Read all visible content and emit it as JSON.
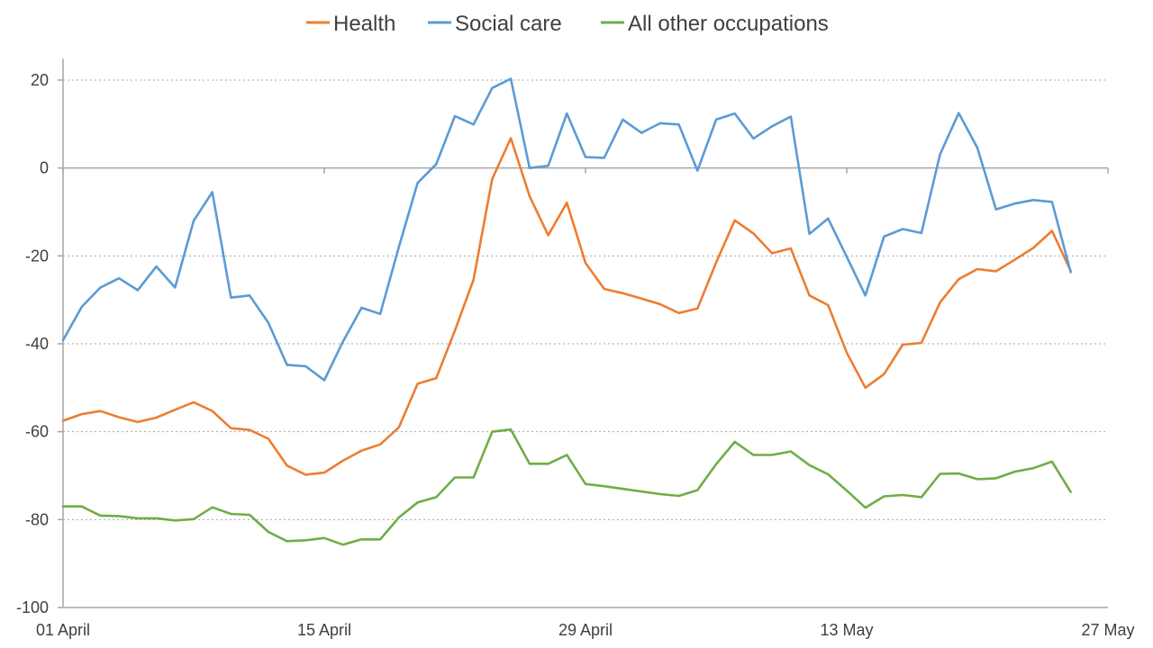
{
  "chart_data": {
    "type": "line",
    "title": "",
    "xlabel": "",
    "ylabel": "",
    "ylim": [
      -100,
      20
    ],
    "yticks": [
      20,
      0,
      -20,
      -40,
      -60,
      -80,
      -100
    ],
    "x_tick_labels": [
      {
        "index": 0,
        "label": "01 April"
      },
      {
        "index": 14,
        "label": "15 April"
      },
      {
        "index": 28,
        "label": "29 April"
      },
      {
        "index": 42,
        "label": "13 May"
      },
      {
        "index": 56,
        "label": "27 May"
      }
    ],
    "x_count": 57,
    "grid": true,
    "legend": "top-center",
    "series": [
      {
        "name": "Health",
        "color": "#ed7d31",
        "values": [
          -57.5,
          -56,
          -55.3,
          -56.7,
          -57.8,
          -56.8,
          -55,
          -53.3,
          -55.3,
          -59.2,
          -59.6,
          -61.6,
          -67.7,
          -69.8,
          -69.3,
          -66.6,
          -64.3,
          -62.9,
          -59,
          -49.1,
          -47.8,
          -37,
          -25.4,
          -2.5,
          6.8,
          -6.4,
          -15.3,
          -7.9,
          -21.6,
          -27.5,
          -28.5,
          -29.7,
          -31,
          -33,
          -32,
          -21.5,
          -11.9,
          -14.9,
          -19.4,
          -18.3,
          -29,
          -31.2,
          -42,
          -50,
          -46.9,
          -40.2,
          -39.8,
          -30.6,
          -25.3,
          -23,
          -23.5,
          -20.9,
          -18.2,
          -14.3,
          -23.4
        ]
      },
      {
        "name": "Social care",
        "color": "#5b9bd5",
        "values": [
          -39.2,
          -31.6,
          -27.2,
          -25.1,
          -27.8,
          -22.4,
          -27.2,
          -12,
          -5.5,
          -29.5,
          -29,
          -35.2,
          -44.8,
          -45.1,
          -48.3,
          -39.5,
          -31.8,
          -33.2,
          -17.9,
          -3.4,
          0.9,
          11.8,
          9.9,
          18.2,
          20.3,
          0,
          0.5,
          12.4,
          2.5,
          2.3,
          11,
          8,
          10.2,
          9.9,
          -0.6,
          11,
          12.4,
          6.7,
          9.5,
          11.7,
          -15,
          -11.5,
          -20.2,
          -29,
          -15.6,
          -13.9,
          -14.8,
          3.1,
          12.5,
          4.6,
          -9.4,
          -8.1,
          -7.3,
          -7.7,
          -23.7
        ]
      },
      {
        "name": "All other occupations",
        "color": "#70ad47",
        "values": [
          -77,
          -77,
          -79.1,
          -79.2,
          -79.7,
          -79.7,
          -80.2,
          -79.9,
          -77.2,
          -78.7,
          -78.9,
          -82.8,
          -84.9,
          -84.7,
          -84.2,
          -85.7,
          -84.5,
          -84.5,
          -79.5,
          -76.1,
          -74.9,
          -70.4,
          -70.4,
          -60,
          -59.5,
          -67.3,
          -67.3,
          -65.3,
          -71.9,
          -72.4,
          -73,
          -73.6,
          -74.2,
          -74.6,
          -73.3,
          -67.4,
          -62.3,
          -65.3,
          -65.3,
          -64.5,
          -67.6,
          -69.7,
          -73.4,
          -77.3,
          -74.7,
          -74.4,
          -74.9,
          -69.6,
          -69.5,
          -70.8,
          -70.6,
          -69.1,
          -68.3,
          -66.8,
          -73.7
        ]
      }
    ]
  }
}
